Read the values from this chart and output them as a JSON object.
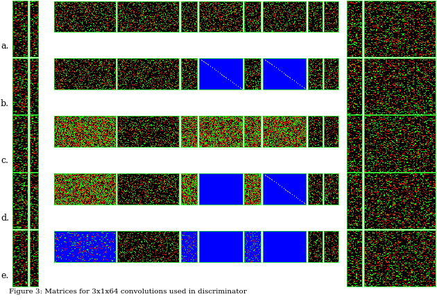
{
  "title": "Figure 3: Matrices for 3x1x64 convolutions used in discriminator",
  "row_labels": [
    "a.",
    "b.",
    "c.",
    "d.",
    "e."
  ],
  "background_color": "#ffffff",
  "figure_width": 6.3,
  "figure_height": 4.44,
  "dpi": 100,
  "seed": 42,
  "caption": "Figure 3: Matrices for 3x1x64 convolutions used in discriminator"
}
